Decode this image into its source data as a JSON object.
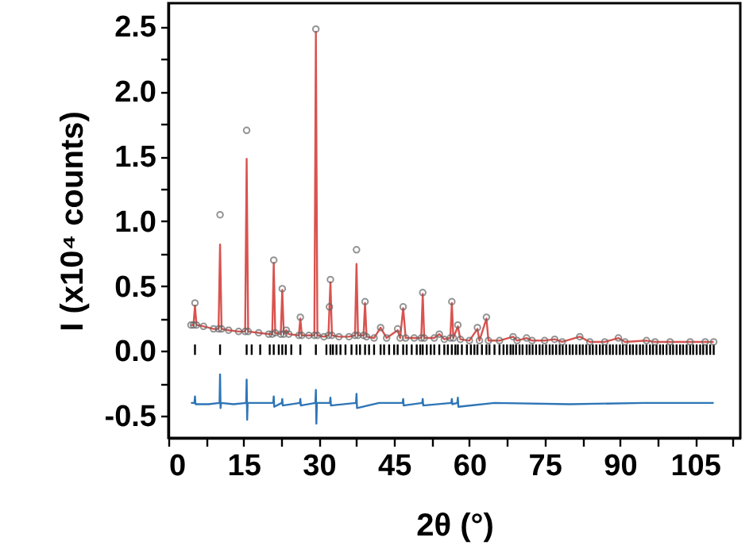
{
  "chart_data": {
    "type": "line",
    "xlabel": "2θ (°)",
    "ylabel": "I (x10⁴ counts)",
    "xlim": [
      0,
      114
    ],
    "ylim": [
      -0.67,
      2.68
    ],
    "xticks": [
      0,
      {
        "value": 7.5,
        "label": null
      },
      15,
      {
        "value": 22.5,
        "label": null
      },
      30,
      {
        "value": 37.5,
        "label": null
      },
      45,
      {
        "value": 52.5,
        "label": null
      },
      60,
      {
        "value": 67.5,
        "label": null
      },
      75,
      {
        "value": 82.5,
        "label": null
      },
      90,
      {
        "value": 97.5,
        "label": null
      },
      105,
      {
        "value": 112.5,
        "label": null
      }
    ],
    "yticks": [
      {
        "value": -0.5,
        "label": "-0.5"
      },
      {
        "value": -0.25,
        "label": null
      },
      {
        "value": 0,
        "label": "0.0"
      },
      {
        "value": 0.25,
        "label": null
      },
      {
        "value": 0.5,
        "label": "0.5"
      },
      {
        "value": 0.75,
        "label": null
      },
      {
        "value": 1,
        "label": "1.0"
      },
      {
        "value": 1.25,
        "label": null
      },
      {
        "value": 1.5,
        "label": "1.5"
      },
      {
        "value": 1.75,
        "label": null
      },
      {
        "value": 2,
        "label": "2.0"
      },
      {
        "value": 2.25,
        "label": null
      },
      {
        "value": 2.5,
        "label": "2.5"
      }
    ],
    "grid": false,
    "series": [
      {
        "type": "bar",
        "color": "#000000",
        "x": [
          5.3,
          10.3,
          15.6,
          16.6,
          18.3,
          20.2,
          21.0,
          22.0,
          22.7,
          23.4,
          24.5,
          26.3,
          29.4,
          31.5,
          32.3,
          32.8,
          33.5,
          34.3,
          35.3,
          36.5,
          37.5,
          38.2,
          39.2,
          40.0,
          41.0,
          42.3,
          43.0,
          44.0,
          45.0,
          45.7,
          46.8,
          47.5,
          48.5,
          49.5,
          50.2,
          50.7,
          51.5,
          52.3,
          53.0,
          54.0,
          55.0,
          55.7,
          56.5,
          57.2,
          57.7,
          58.5,
          59.5,
          60.3,
          61.0,
          61.6,
          62.5,
          63.4,
          64.0,
          65.0,
          66.0,
          66.8,
          67.5,
          68.2,
          68.7,
          69.3,
          70.0,
          70.6,
          71.4,
          72.0,
          72.6,
          73.3,
          74.0,
          74.6,
          75.3,
          76.0,
          76.6,
          77.3,
          78.0,
          78.6,
          79.3,
          80.0,
          80.6,
          81.3,
          82.0,
          82.6,
          83.3,
          84.0,
          84.6,
          85.3,
          86.0,
          86.6,
          87.3,
          88.0,
          88.6,
          89.3,
          90.0,
          90.6,
          91.3,
          92.0,
          92.6,
          93.3,
          94.0,
          94.6,
          95.3,
          96.0,
          96.6,
          97.3,
          98.0,
          98.6,
          99.3,
          100.0,
          100.6,
          101.3,
          102.0,
          102.6,
          103.3,
          104.0,
          104.6,
          105.3,
          106.0,
          106.6,
          107.3,
          108.0,
          108.7
        ],
        "base": [
          -0.03,
          -0.03,
          -0.03,
          -0.03,
          -0.03,
          -0.03,
          -0.03,
          -0.03,
          -0.03,
          -0.03,
          -0.03,
          -0.03,
          -0.03,
          -0.03,
          -0.03,
          -0.03,
          -0.03,
          -0.03,
          -0.03,
          -0.03,
          -0.03,
          -0.03,
          -0.03,
          -0.03,
          -0.03,
          -0.03,
          -0.03,
          -0.03,
          -0.03,
          -0.03,
          -0.03,
          -0.03,
          -0.03,
          -0.03,
          -0.03,
          -0.03,
          -0.03,
          -0.03,
          -0.03,
          -0.03,
          -0.03,
          -0.03,
          -0.03,
          -0.03,
          -0.03,
          -0.03,
          -0.03,
          -0.03,
          -0.03,
          -0.03,
          -0.03,
          -0.03,
          -0.03,
          -0.03,
          -0.03,
          -0.03,
          -0.03,
          -0.03,
          -0.03,
          -0.03,
          -0.03,
          -0.03,
          -0.03,
          -0.03,
          -0.03,
          -0.03,
          -0.03,
          -0.03,
          -0.03,
          -0.03,
          -0.03,
          -0.03,
          -0.03,
          -0.03,
          -0.03,
          -0.03,
          -0.03,
          -0.03,
          -0.03,
          -0.03,
          -0.03,
          -0.03,
          -0.03,
          -0.03,
          -0.03,
          -0.03,
          -0.03,
          -0.03,
          -0.03,
          -0.03,
          -0.03,
          -0.03,
          -0.03,
          -0.03,
          -0.03,
          -0.03,
          -0.03,
          -0.03,
          -0.03,
          -0.03,
          -0.03,
          -0.03,
          -0.03,
          -0.03,
          -0.03,
          -0.03,
          -0.03,
          -0.03,
          -0.03,
          -0.03,
          -0.03,
          -0.03,
          -0.03,
          -0.03,
          -0.03,
          -0.03,
          -0.03,
          -0.03,
          -0.03
        ],
        "values": [
          0.08,
          0.08,
          0.08,
          0.08,
          0.08,
          0.08,
          0.08,
          0.08,
          0.08,
          0.08,
          0.08,
          0.08,
          0.08,
          0.08,
          0.08,
          0.08,
          0.08,
          0.08,
          0.08,
          0.08,
          0.08,
          0.08,
          0.08,
          0.08,
          0.08,
          0.08,
          0.08,
          0.08,
          0.08,
          0.08,
          0.08,
          0.08,
          0.08,
          0.08,
          0.08,
          0.08,
          0.08,
          0.08,
          0.08,
          0.08,
          0.08,
          0.08,
          0.08,
          0.08,
          0.08,
          0.08,
          0.08,
          0.08,
          0.08,
          0.08,
          0.08,
          0.08,
          0.08,
          0.08,
          0.08,
          0.08,
          0.08,
          0.08,
          0.08,
          0.08,
          0.08,
          0.08,
          0.08,
          0.08,
          0.08,
          0.08,
          0.08,
          0.08,
          0.08,
          0.08,
          0.08,
          0.08,
          0.08,
          0.08,
          0.08,
          0.08,
          0.08,
          0.08,
          0.08,
          0.08,
          0.08,
          0.08,
          0.08,
          0.08,
          0.08,
          0.08,
          0.08,
          0.08,
          0.08,
          0.08,
          0.08,
          0.08,
          0.08,
          0.08,
          0.08,
          0.08,
          0.08,
          0.08,
          0.08,
          0.08,
          0.08,
          0.08,
          0.08,
          0.08,
          0.08,
          0.08,
          0.08,
          0.08,
          0.08,
          0.08,
          0.08,
          0.08,
          0.08,
          0.08,
          0.08,
          0.08,
          0.08,
          0.08,
          0.08
        ]
      },
      {
        "type": "line",
        "color": "#2e75b6",
        "marker": "none",
        "x": [
          4.5,
          5.2,
          5.3,
          5.4,
          8,
          10.2,
          10.3,
          10.4,
          10.5,
          13,
          15.5,
          15.6,
          15.7,
          15.8,
          18,
          20.9,
          21.0,
          21.1,
          22.6,
          22.7,
          22.8,
          26.2,
          26.3,
          26.4,
          29.3,
          29.4,
          29.5,
          29.6,
          32.2,
          32.3,
          32.4,
          37.4,
          37.5,
          37.6,
          42,
          46.7,
          46.8,
          46.9,
          50.6,
          50.7,
          50.8,
          56.4,
          56.5,
          56.6,
          57.6,
          57.7,
          57.8,
          65,
          80,
          95,
          108.7
        ],
        "values": [
          -0.4,
          -0.4,
          -0.35,
          -0.41,
          -0.41,
          -0.4,
          -0.18,
          -0.44,
          -0.4,
          -0.41,
          -0.4,
          -0.22,
          -0.53,
          -0.4,
          -0.4,
          -0.4,
          -0.35,
          -0.43,
          -0.4,
          -0.37,
          -0.42,
          -0.4,
          -0.37,
          -0.42,
          -0.4,
          -0.3,
          -0.56,
          -0.4,
          -0.4,
          -0.36,
          -0.42,
          -0.4,
          -0.33,
          -0.44,
          -0.4,
          -0.4,
          -0.37,
          -0.42,
          -0.4,
          -0.37,
          -0.42,
          -0.4,
          -0.37,
          -0.41,
          -0.4,
          -0.36,
          -0.43,
          -0.4,
          -0.41,
          -0.4,
          -0.4
        ]
      },
      {
        "color": "#d9534f",
        "marker": "none",
        "x": [
          4.5,
          5.0,
          5.3,
          5.6,
          7,
          9,
          10.0,
          10.3,
          10.6,
          12,
          14,
          15.3,
          15.6,
          15.9,
          18,
          20,
          20.7,
          21.0,
          21.3,
          22.4,
          22.7,
          23.0,
          23.5,
          24,
          26.0,
          26.3,
          26.6,
          28,
          29.1,
          29.4,
          29.7,
          31,
          31.9,
          32.1,
          32.3,
          32.6,
          34,
          36,
          37.2,
          37.5,
          37.8,
          38.9,
          39.2,
          39.5,
          41,
          42.3,
          43.5,
          45.7,
          46.2,
          46.8,
          47.3,
          49,
          50.4,
          50.7,
          51,
          53,
          54,
          55,
          56.2,
          56.5,
          56.8,
          57.7,
          58.2,
          60,
          61.6,
          62,
          63.4,
          63.8,
          66,
          68.7,
          69.5,
          71.4,
          72.5,
          75,
          77,
          78.5,
          82,
          84,
          87,
          89.7,
          91,
          95.3,
          97,
          100,
          104,
          107,
          108.7
        ],
        "values": [
          0.2,
          0.2,
          0.35,
          0.2,
          0.19,
          0.17,
          0.17,
          0.82,
          0.17,
          0.16,
          0.15,
          0.15,
          1.48,
          0.15,
          0.14,
          0.13,
          0.13,
          0.68,
          0.14,
          0.13,
          0.47,
          0.13,
          0.16,
          0.13,
          0.12,
          0.25,
          0.12,
          0.12,
          0.12,
          2.46,
          0.12,
          0.11,
          0.12,
          0.33,
          0.53,
          0.12,
          0.11,
          0.11,
          0.12,
          0.67,
          0.12,
          0.12,
          0.37,
          0.11,
          0.1,
          0.18,
          0.1,
          0.16,
          0.1,
          0.33,
          0.1,
          0.1,
          0.1,
          0.44,
          0.1,
          0.1,
          0.13,
          0.09,
          0.1,
          0.37,
          0.1,
          0.19,
          0.09,
          0.08,
          0.17,
          0.08,
          0.25,
          0.08,
          0.08,
          0.11,
          0.08,
          0.1,
          0.08,
          0.08,
          0.09,
          0.07,
          0.11,
          0.07,
          0.07,
          0.1,
          0.07,
          0.08,
          0.07,
          0.07,
          0.07,
          0.07,
          0.07
        ]
      },
      {
        "type": "scatter",
        "color": "#666666",
        "marker": "circle",
        "x": [
          4.5,
          5.0,
          5.3,
          5.6,
          7,
          9,
          10.0,
          10.3,
          10.6,
          12,
          14,
          15.3,
          15.6,
          15.9,
          18,
          20,
          20.7,
          21.0,
          21.3,
          22.4,
          22.7,
          23.0,
          23.5,
          24,
          26.0,
          26.3,
          26.6,
          28,
          29.1,
          29.4,
          29.7,
          31,
          31.9,
          32.1,
          32.3,
          32.6,
          34,
          36,
          37.2,
          37.5,
          37.8,
          38.9,
          39.2,
          39.5,
          41,
          42.3,
          43.5,
          45.7,
          46.2,
          46.8,
          47.3,
          49,
          50.4,
          50.7,
          51,
          53,
          54,
          55,
          56.2,
          56.5,
          56.8,
          57.7,
          58.2,
          60,
          61.6,
          62,
          63.4,
          63.8,
          66,
          68.7,
          69.5,
          71.4,
          72.5,
          75,
          77,
          78.5,
          82,
          84,
          87,
          89.7,
          91,
          95.3,
          97,
          100,
          104,
          107,
          108.7
        ],
        "values": [
          0.2,
          0.2,
          0.37,
          0.2,
          0.19,
          0.17,
          0.17,
          1.05,
          0.17,
          0.16,
          0.15,
          0.15,
          1.7,
          0.15,
          0.14,
          0.13,
          0.13,
          0.7,
          0.14,
          0.13,
          0.48,
          0.13,
          0.16,
          0.13,
          0.12,
          0.26,
          0.12,
          0.12,
          0.12,
          2.48,
          0.12,
          0.11,
          0.12,
          0.34,
          0.55,
          0.12,
          0.11,
          0.11,
          0.12,
          0.78,
          0.12,
          0.12,
          0.38,
          0.11,
          0.1,
          0.18,
          0.1,
          0.17,
          0.1,
          0.34,
          0.1,
          0.1,
          0.1,
          0.45,
          0.1,
          0.1,
          0.13,
          0.09,
          0.1,
          0.38,
          0.1,
          0.2,
          0.09,
          0.08,
          0.18,
          0.08,
          0.26,
          0.08,
          0.08,
          0.11,
          0.08,
          0.1,
          0.08,
          0.08,
          0.09,
          0.07,
          0.11,
          0.07,
          0.07,
          0.1,
          0.07,
          0.08,
          0.07,
          0.07,
          0.07,
          0.07,
          0.07
        ]
      }
    ]
  }
}
